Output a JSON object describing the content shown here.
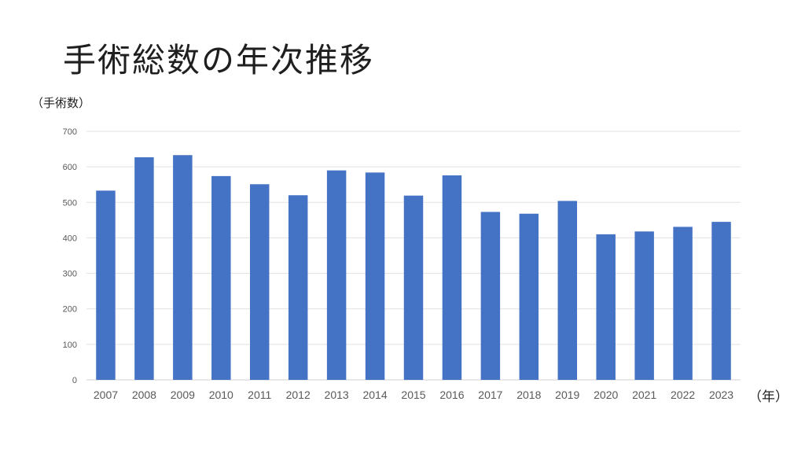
{
  "slide": {
    "title": "手術総数の年次推移",
    "y_unit_label": "（手術数）",
    "x_unit_label": "（年）"
  },
  "colors": {
    "bar": "#4472C4",
    "gridline": "#E1E1E1",
    "tick_text": "#595959"
  },
  "chart_data": {
    "type": "bar",
    "title": "手術総数の年次推移",
    "xlabel": "（年）",
    "ylabel": "（手術数）",
    "categories": [
      "2007",
      "2008",
      "2009",
      "2010",
      "2011",
      "2012",
      "2013",
      "2014",
      "2015",
      "2016",
      "2017",
      "2018",
      "2019",
      "2020",
      "2021",
      "2022",
      "2023"
    ],
    "values": [
      533,
      627,
      633,
      574,
      551,
      520,
      590,
      584,
      519,
      576,
      473,
      468,
      504,
      410,
      418,
      431,
      445
    ],
    "ylim": [
      0,
      700
    ],
    "yticks": [
      0,
      100,
      200,
      300,
      400,
      500,
      600,
      700
    ],
    "grid": true,
    "legend": "none"
  }
}
